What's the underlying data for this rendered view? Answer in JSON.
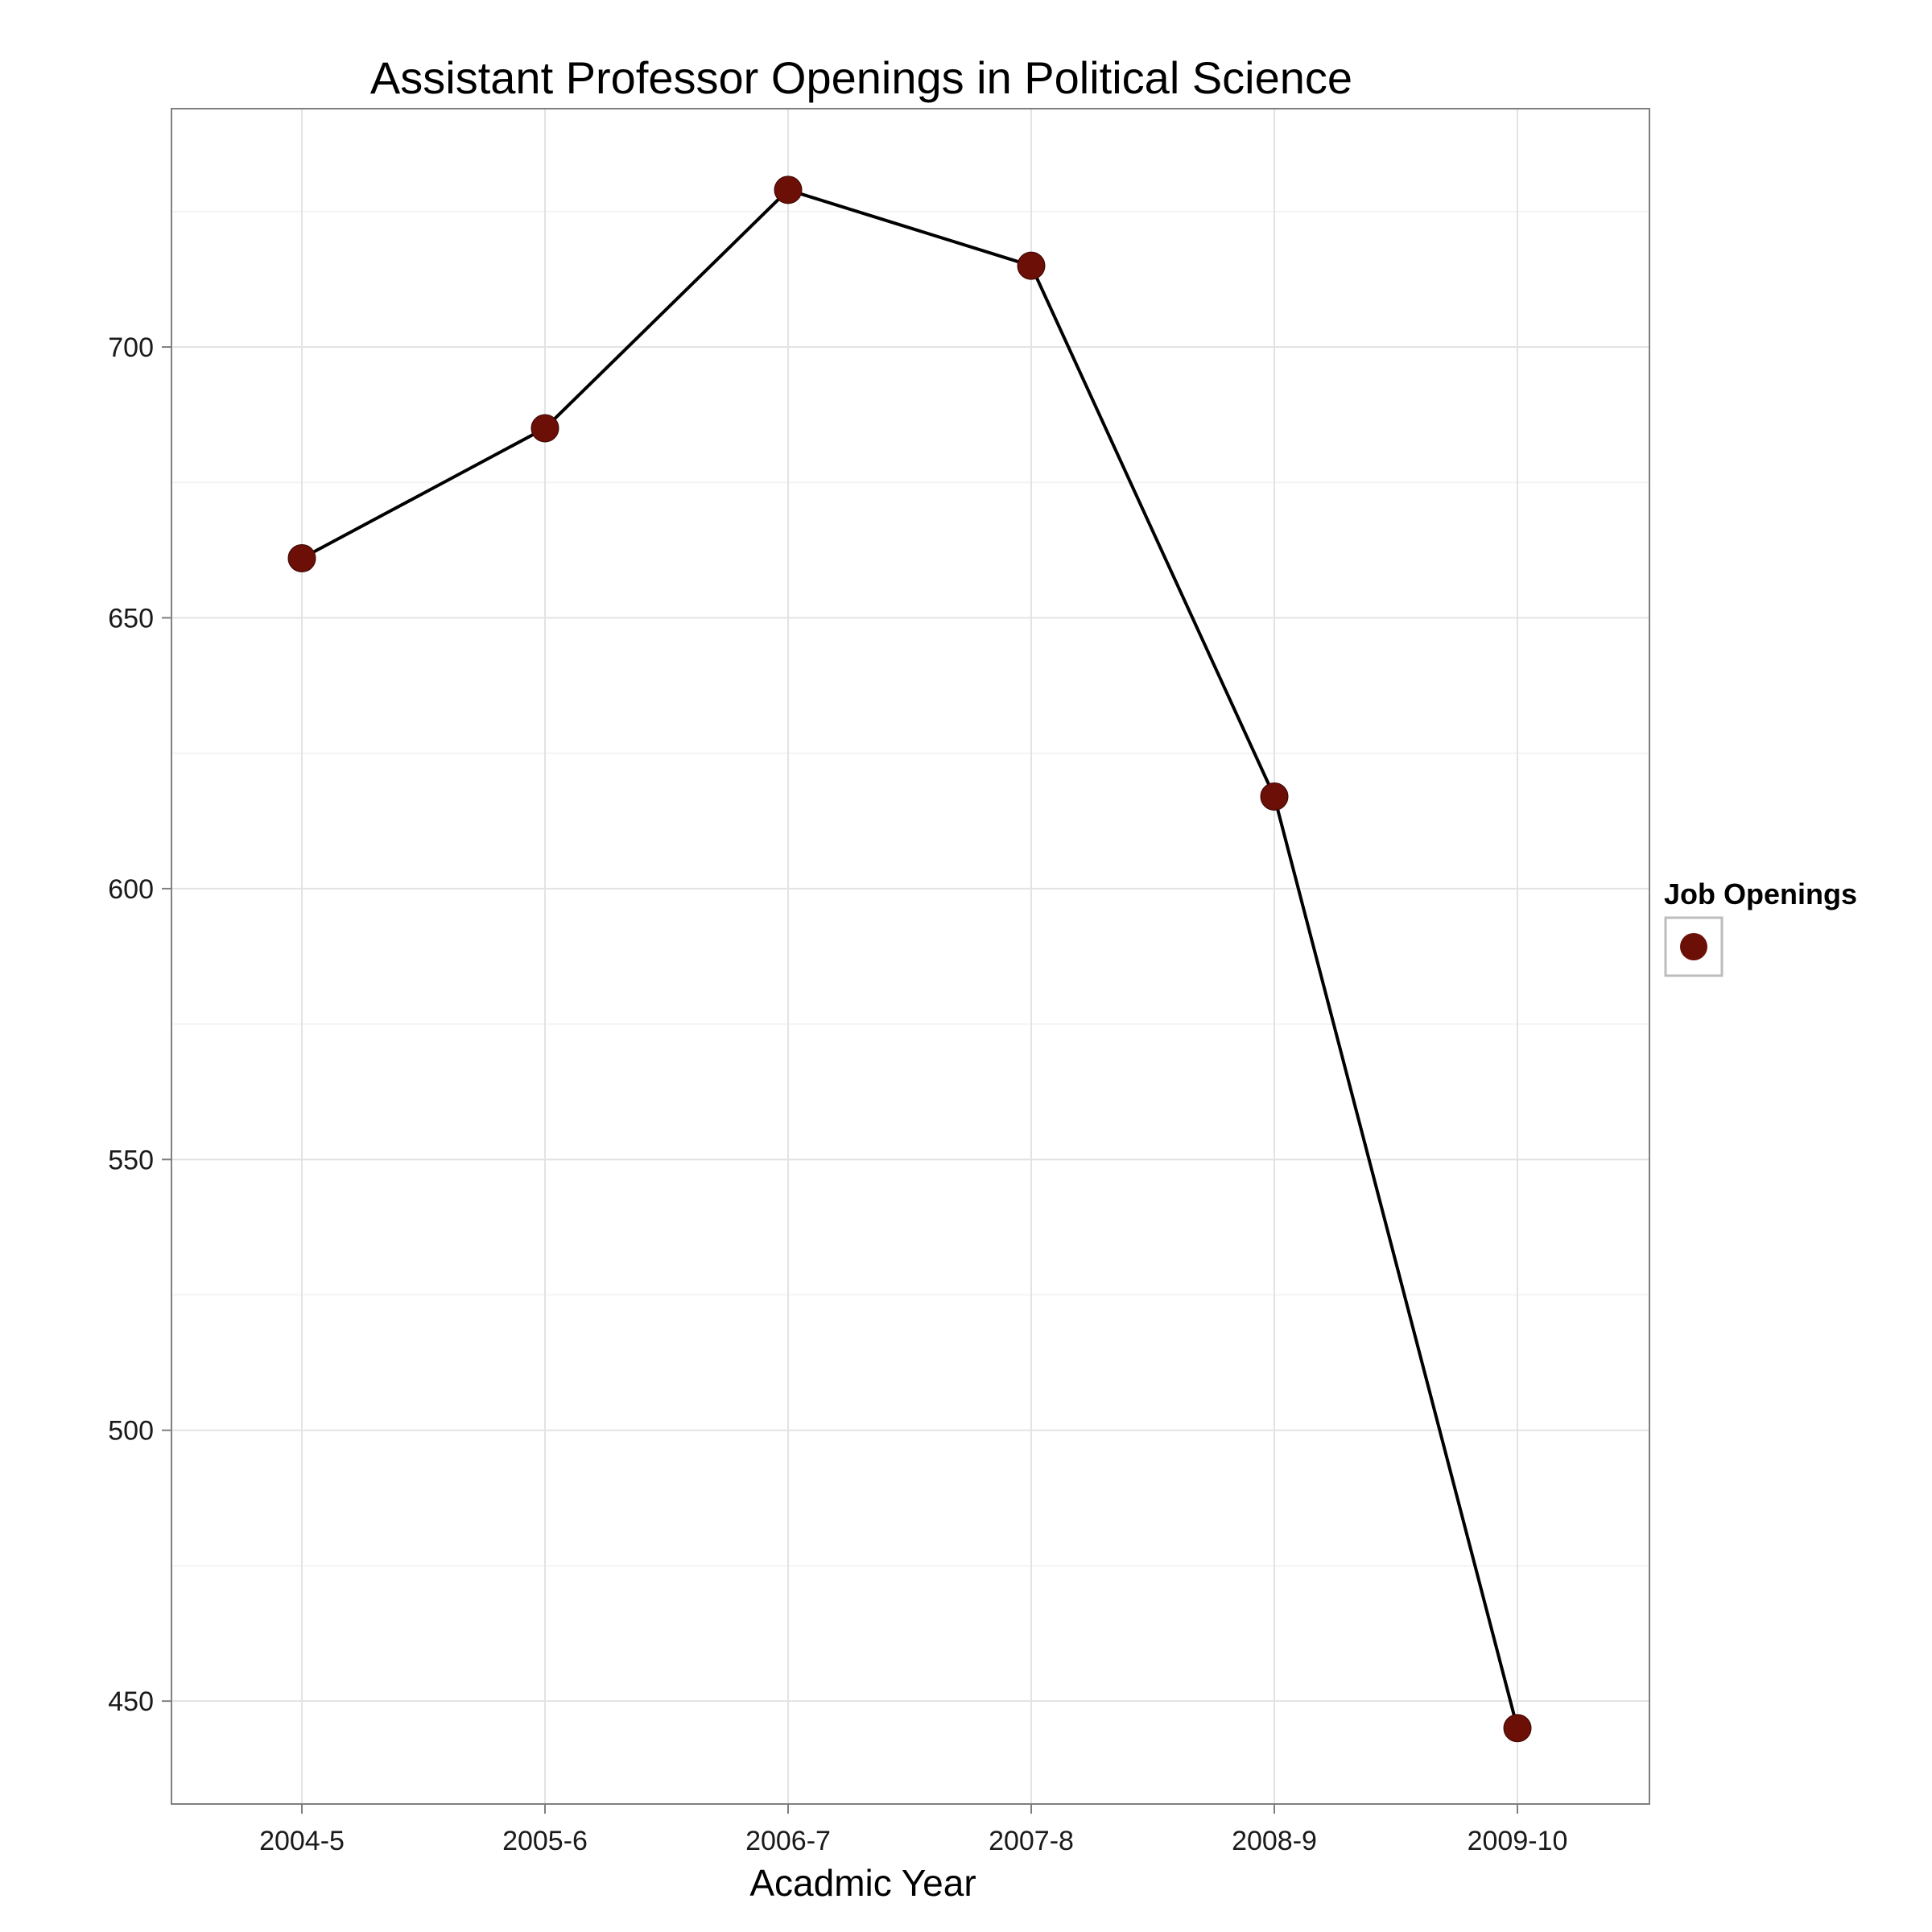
{
  "chart_data": {
    "type": "line",
    "title": "Assistant Professor Openings in Political Science",
    "xlabel": "Acadmic Year",
    "ylabel": "",
    "categories": [
      "2004-5",
      "2005-6",
      "2006-7",
      "2007-8",
      "2008-9",
      "2009-10"
    ],
    "series": [
      {
        "name": "Job Openings",
        "values": [
          661,
          685,
          729,
          715,
          617,
          445
        ]
      }
    ],
    "ylim": [
      431,
      744
    ],
    "yticks": [
      450,
      500,
      550,
      600,
      650,
      700
    ],
    "grid": true,
    "legend": {
      "title": "Job Openings",
      "position": "right"
    },
    "colors": {
      "marker": "#6b0f07",
      "line": "#000000",
      "grid_major": "#e3e3e3",
      "grid_minor": "#f4f4f4",
      "panel_border": "#7f7f7f"
    }
  }
}
